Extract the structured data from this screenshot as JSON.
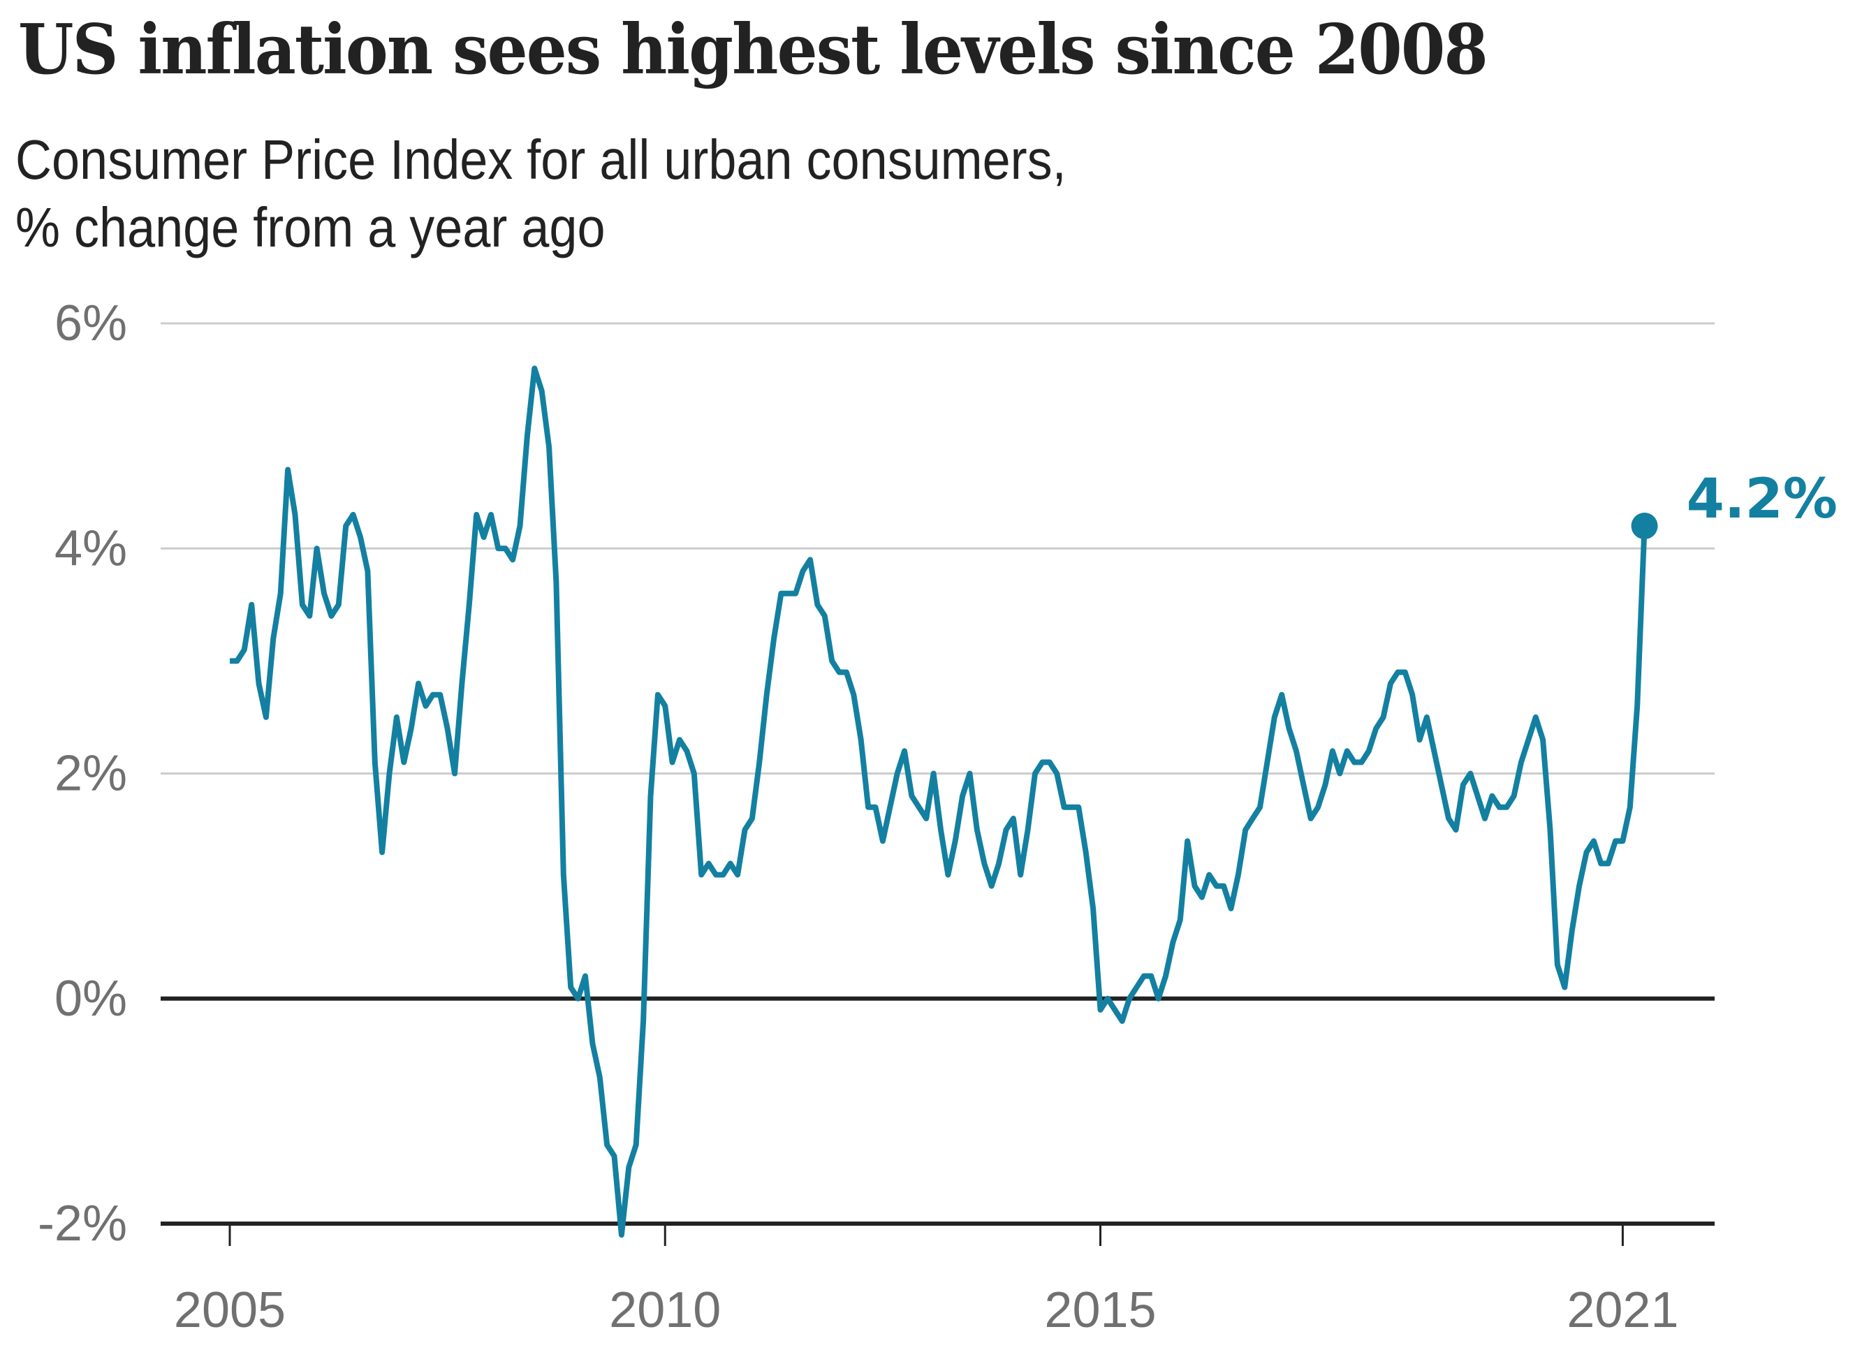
{
  "title": "US inflation sees highest levels since 2008",
  "subtitle_line1": "Consumer Price Index for all urban consumers,",
  "subtitle_line2": "% change from a year ago",
  "colors": {
    "line": "#1380A1",
    "grid": "#cccccc",
    "axis": "#222222",
    "tick_text": "#707070"
  },
  "chart_data": {
    "type": "line",
    "title": "US inflation sees highest levels since 2008",
    "subtitle": "Consumer Price Index for all urban consumers, % change from a year ago",
    "xlabel": "",
    "ylabel": "",
    "x_start": "2005-01",
    "x_frequency": "monthly",
    "xlim": [
      2005,
      2021.75
    ],
    "ylim": [
      -2,
      6
    ],
    "y_ticks": [
      6,
      4,
      2,
      0,
      -2
    ],
    "y_tick_labels": [
      "6%",
      "4%",
      "2%",
      "0%",
      "-2%"
    ],
    "x_ticks": [
      2005,
      2010,
      2015,
      2021
    ],
    "x_tick_labels": [
      "2005",
      "2010",
      "2015",
      "2021"
    ],
    "grid": true,
    "legend": "none",
    "annotation": {
      "label": "4.2%",
      "x": "2021-04",
      "y": 4.2
    },
    "series": [
      {
        "name": "CPI-U % change from a year ago",
        "values": [
          3.0,
          3.0,
          3.1,
          3.5,
          2.8,
          2.5,
          3.2,
          3.6,
          4.7,
          4.3,
          3.5,
          3.4,
          4.0,
          3.6,
          3.4,
          3.5,
          4.2,
          4.3,
          4.1,
          3.8,
          2.1,
          1.3,
          2.0,
          2.5,
          2.1,
          2.4,
          2.8,
          2.6,
          2.7,
          2.7,
          2.4,
          2.0,
          2.8,
          3.5,
          4.3,
          4.1,
          4.3,
          4.0,
          4.0,
          3.9,
          4.2,
          5.0,
          5.6,
          5.4,
          4.9,
          3.7,
          1.1,
          0.1,
          0.0,
          0.2,
          -0.4,
          -0.7,
          -1.3,
          -1.4,
          -2.1,
          -1.5,
          -1.3,
          -0.2,
          1.8,
          2.7,
          2.6,
          2.1,
          2.3,
          2.2,
          2.0,
          1.1,
          1.2,
          1.1,
          1.1,
          1.2,
          1.1,
          1.5,
          1.6,
          2.1,
          2.7,
          3.2,
          3.6,
          3.6,
          3.6,
          3.8,
          3.9,
          3.5,
          3.4,
          3.0,
          2.9,
          2.9,
          2.7,
          2.3,
          1.7,
          1.7,
          1.4,
          1.7,
          2.0,
          2.2,
          1.8,
          1.7,
          1.6,
          2.0,
          1.5,
          1.1,
          1.4,
          1.8,
          2.0,
          1.5,
          1.2,
          1.0,
          1.2,
          1.5,
          1.6,
          1.1,
          1.5,
          2.0,
          2.1,
          2.1,
          2.0,
          1.7,
          1.7,
          1.7,
          1.3,
          0.8,
          -0.1,
          0.0,
          -0.1,
          -0.2,
          0.0,
          0.1,
          0.2,
          0.2,
          0.0,
          0.2,
          0.5,
          0.7,
          1.4,
          1.0,
          0.9,
          1.1,
          1.0,
          1.0,
          0.8,
          1.1,
          1.5,
          1.6,
          1.7,
          2.1,
          2.5,
          2.7,
          2.4,
          2.2,
          1.9,
          1.6,
          1.7,
          1.9,
          2.2,
          2.0,
          2.2,
          2.1,
          2.1,
          2.2,
          2.4,
          2.5,
          2.8,
          2.9,
          2.9,
          2.7,
          2.3,
          2.5,
          2.2,
          1.9,
          1.6,
          1.5,
          1.9,
          2.0,
          1.8,
          1.6,
          1.8,
          1.7,
          1.7,
          1.8,
          2.1,
          2.3,
          2.5,
          2.3,
          1.5,
          0.3,
          0.1,
          0.6,
          1.0,
          1.3,
          1.4,
          1.2,
          1.2,
          1.4,
          1.4,
          1.7,
          2.6,
          4.2
        ]
      }
    ]
  }
}
